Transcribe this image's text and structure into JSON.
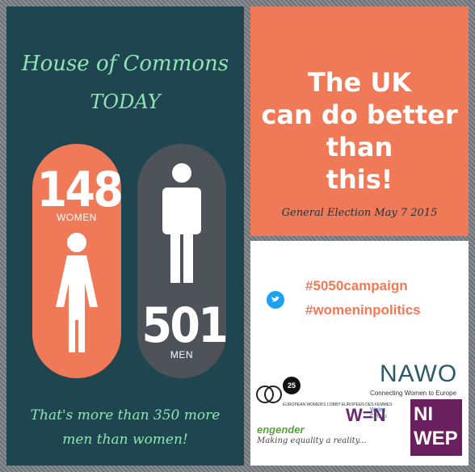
{
  "left_panel": {
    "title_line1": "House of Commons",
    "title_line2": "TODAY",
    "women_count": "148",
    "women_label": "WOMEN",
    "men_count": "501",
    "men_label": "MEN",
    "bottom_line1": "That's more than 350 more",
    "bottom_line2": "men than women!"
  },
  "top_right_panel": {
    "headline_line1": "The UK",
    "headline_line2": "can do better than",
    "headline_line3": "this!",
    "footer": "General Election May 7 2015"
  },
  "bottom_right_panel": {
    "hashtag1": "#5050campaign",
    "hashtag2": "#womeninpolitics",
    "nawo": "NAWO",
    "nawo_sub": "Connecting Women to Europe",
    "ewl_badge": "25",
    "ewl_text": "EUROPEAN WOMEN'S LOBBY EUROPEEN DES FEMMES",
    "wen": "W=N",
    "wen_sub1": "Wales",
    "wen_sub2": "Cymru",
    "niwep1": "NI",
    "niwep2": "WEP",
    "engender": "engender",
    "engender_sub": "Making equality a reality..."
  },
  "colors": {
    "panel_dark": "#1f4650",
    "accent_orange": "#f07a58",
    "mint_text": "#8fe3b5",
    "men_pill": "#4d5358"
  }
}
